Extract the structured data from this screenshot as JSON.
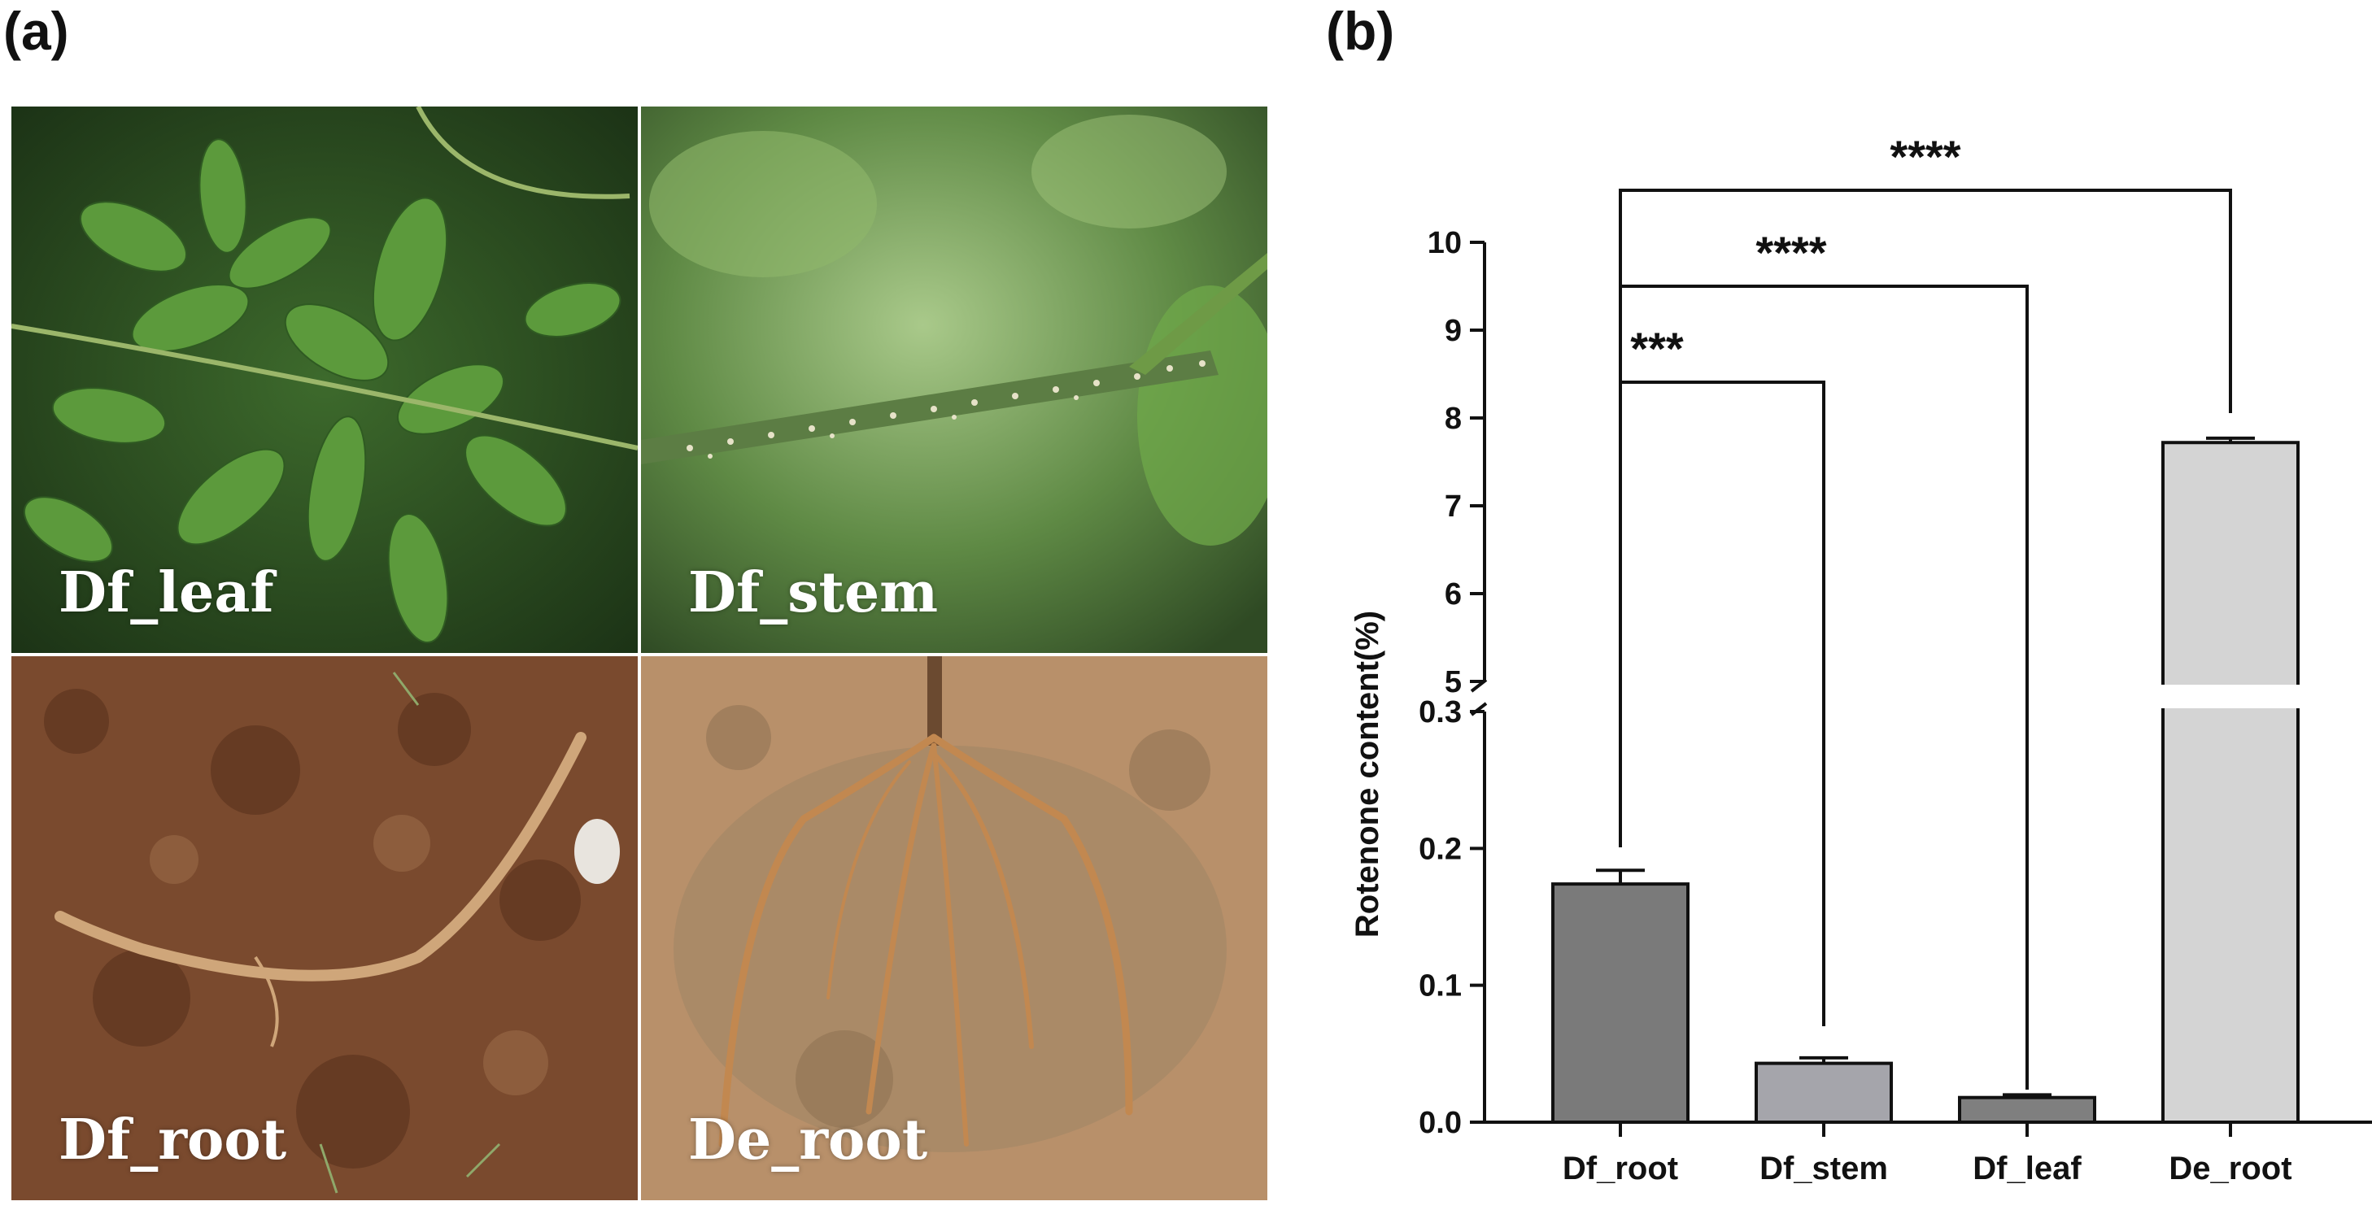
{
  "panel_labels": {
    "a": "(a)",
    "b": "(b)"
  },
  "photos": [
    {
      "label": "Df_leaf"
    },
    {
      "label": "Df_stem"
    },
    {
      "label": "Df_root"
    },
    {
      "label": "De_root"
    }
  ],
  "chart_data": {
    "type": "bar",
    "ylabel": "Rotenone content(%)",
    "categories": [
      "Df_root",
      "Df_stem",
      "Df_leaf",
      "De_root"
    ],
    "values": [
      0.174,
      0.043,
      0.018,
      7.72
    ],
    "errors": [
      0.01,
      0.004,
      0.002,
      0.05
    ],
    "bar_colors": [
      "#7a7a7a",
      "#a5a5ab",
      "#7f7f7f",
      "#d4d4d4"
    ],
    "y_axis_broken": true,
    "lower_segment": {
      "ylim": [
        0,
        0.3
      ],
      "ticks": [
        "0.0",
        "0.1",
        "0.2",
        "0.3"
      ]
    },
    "upper_segment": {
      "ylim": [
        5,
        10
      ],
      "ticks": [
        "5",
        "6",
        "7",
        "8",
        "9",
        "10"
      ]
    },
    "significance": [
      {
        "from": "Df_root",
        "to": "Df_stem",
        "label": "***"
      },
      {
        "from": "Df_root",
        "to": "Df_leaf",
        "label": "****"
      },
      {
        "from": "Df_root",
        "to": "De_root",
        "label": "****"
      }
    ]
  }
}
